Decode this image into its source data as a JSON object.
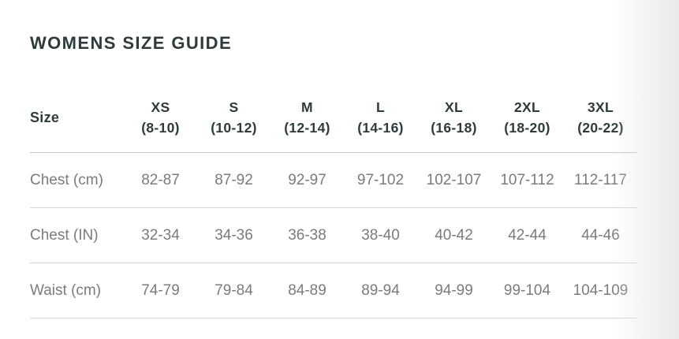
{
  "page": {
    "title": "WOMENS SIZE GUIDE"
  },
  "colors": {
    "heading": "#2d3b3c",
    "body_text": "#7b7b7b",
    "divider": "#d4d4d4",
    "header_divider": "#c3c3c3",
    "background": "#ffffff",
    "edge_fade": "#e9e9e9"
  },
  "size_table": {
    "row_header_label": "Size",
    "columns": [
      {
        "size": "XS",
        "range": "(8-10)"
      },
      {
        "size": "S",
        "range": "(10-12)"
      },
      {
        "size": "M",
        "range": "(12-14)"
      },
      {
        "size": "L",
        "range": "(14-16)"
      },
      {
        "size": "XL",
        "range": "(16-18)"
      },
      {
        "size": "2XL",
        "range": "(18-20)"
      },
      {
        "size": "3XL",
        "range": "(20-22)"
      }
    ],
    "rows": [
      {
        "label": "Chest (cm)",
        "values": [
          "82-87",
          "87-92",
          "92-97",
          "97-102",
          "102-107",
          "107-112",
          "112-117"
        ]
      },
      {
        "label": "Chest (IN)",
        "values": [
          "32-34",
          "34-36",
          "36-38",
          "38-40",
          "40-42",
          "42-44",
          "44-46"
        ]
      },
      {
        "label": "Waist (cm)",
        "values": [
          "74-79",
          "79-84",
          "84-89",
          "89-94",
          "94-99",
          "99-104",
          "104-109"
        ]
      }
    ]
  }
}
